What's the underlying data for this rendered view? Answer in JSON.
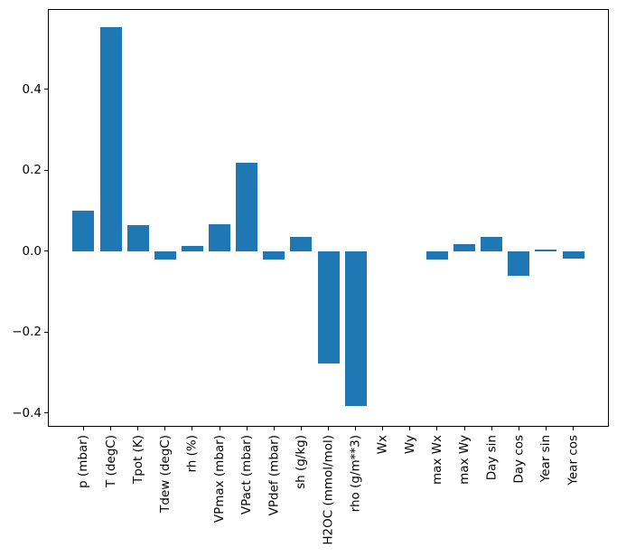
{
  "chart_data": {
    "type": "bar",
    "title": "",
    "xlabel": "",
    "ylabel": "",
    "categories": [
      "p (mbar)",
      "T (degC)",
      "Tpot (K)",
      "Tdew (degC)",
      "rh (%)",
      "VPmax (mbar)",
      "VPact (mbar)",
      "VPdef (mbar)",
      "sh (g/kg)",
      "H2OC (mmol/mol)",
      "rho (g/m**3)",
      "Wx",
      "Wy",
      "max Wx",
      "max Wy",
      "Day sin",
      "Day cos",
      "Year sin",
      "Year cos"
    ],
    "values": [
      0.1,
      0.553,
      0.065,
      -0.02,
      0.012,
      0.067,
      0.219,
      -0.02,
      0.035,
      -0.277,
      -0.383,
      0.0,
      0.0,
      -0.02,
      0.017,
      0.036,
      -0.061,
      0.004,
      -0.018
    ],
    "yticks": [
      {
        "value": 0.4,
        "label": "0.4"
      },
      {
        "value": 0.2,
        "label": "0.2"
      },
      {
        "value": 0.0,
        "label": "0.0"
      },
      {
        "value": -0.2,
        "label": "−0.2"
      },
      {
        "value": -0.4,
        "label": "−0.4"
      }
    ],
    "ylim": [
      -0.434,
      0.598
    ],
    "x_tick_rotation": 90,
    "grid": false,
    "legend": null,
    "bar_color": "#1f77b4",
    "axis_color": "#000000",
    "background_color": "#ffffff"
  }
}
